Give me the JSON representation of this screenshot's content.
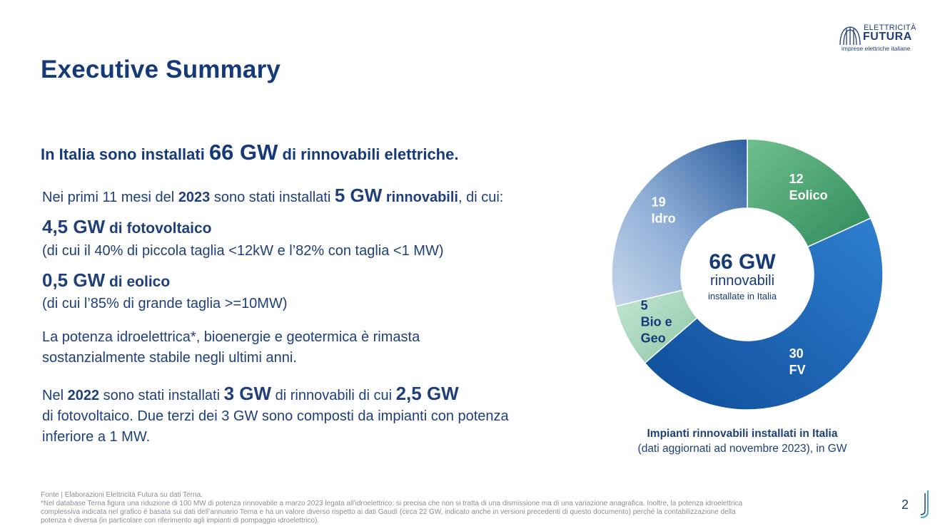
{
  "logo": {
    "line1": "ELETTRICITÀ",
    "line2": "FUTURA",
    "line3": "imprese elettriche italiane"
  },
  "title": "Executive Summary",
  "headline": {
    "pre": "In Italia sono installati ",
    "value": "66 GW",
    "post": " di rinnovabili elettriche."
  },
  "p1": {
    "a": "Nei primi 11 mesi del ",
    "year": "2023",
    "b": " sono stati installati ",
    "value": "5 GW",
    "unit": " rinnovabili",
    "c": ", di cui:"
  },
  "pv": {
    "value": "4,5 GW",
    "label": " di fotovoltaico",
    "note": "(di cui il 40% di piccola taglia <12kW e l’82% con taglia <1 MW)"
  },
  "wind": {
    "value": "0,5 GW",
    "label": " di eolico",
    "note": "(di cui l’85% di grande taglia >=10MW)"
  },
  "p2": {
    "line1": "La potenza idroelettrica*, bioenergie e geotermica è rimasta",
    "line2": "sostanzialmente stabile negli ultimi anni."
  },
  "p3": {
    "a": "Nel ",
    "year": "2022",
    "b": " sono stati installati ",
    "v1": "3 GW",
    "c": " di rinnovabili di cui ",
    "v2": "2,5 GW",
    "line2": "di fotovoltaico. Due terzi dei 3 GW sono composti da impianti con potenza",
    "line3": "inferiore a 1 MW."
  },
  "chart_data": {
    "type": "pie",
    "style": "donut",
    "center": {
      "value": "66 GW",
      "line1": "rinnovabili",
      "line2": "installate in Italia"
    },
    "slices": [
      {
        "value": 12,
        "label": "Eolico",
        "color": "#4a9e6e"
      },
      {
        "value": 30,
        "label": "FV",
        "color": "#1a63b8"
      },
      {
        "value": 5,
        "label": "Bio e Geo",
        "color": "#a9d6bd"
      },
      {
        "value": 19,
        "label": "Idro",
        "color": "#6f96c7"
      }
    ],
    "caption": {
      "line1": "Impianti rinnovabili installati in Italia",
      "line2": "(dati aggiornati ad novembre 2023), in GW"
    }
  },
  "footnote": {
    "line1": "Fonte | Elaborazioni Elettricità Futura su dati Terna.",
    "line2": "*Nel database Terna figura una riduzione di 100 MW di potenza rinnovabile a marzo 2023 legata all’idroelettrico: si precisa che non si tratta di una dismissione ma di una variazione anagrafica. Inoltre, la potenza idroelettrica",
    "line3": "complessiva indicata nel grafico è basata sui dati dell’annuario Terna e ha un valore diverso rispetto ai dati Gaudì (circa 22 GW, indicato anche in versioni precedenti di questo documento) perché la contabilizzazione della",
    "line4": "potenza è diversa (in particolare con riferimento agli impianti di pompaggio idroelettrico)."
  },
  "page_number": "2"
}
